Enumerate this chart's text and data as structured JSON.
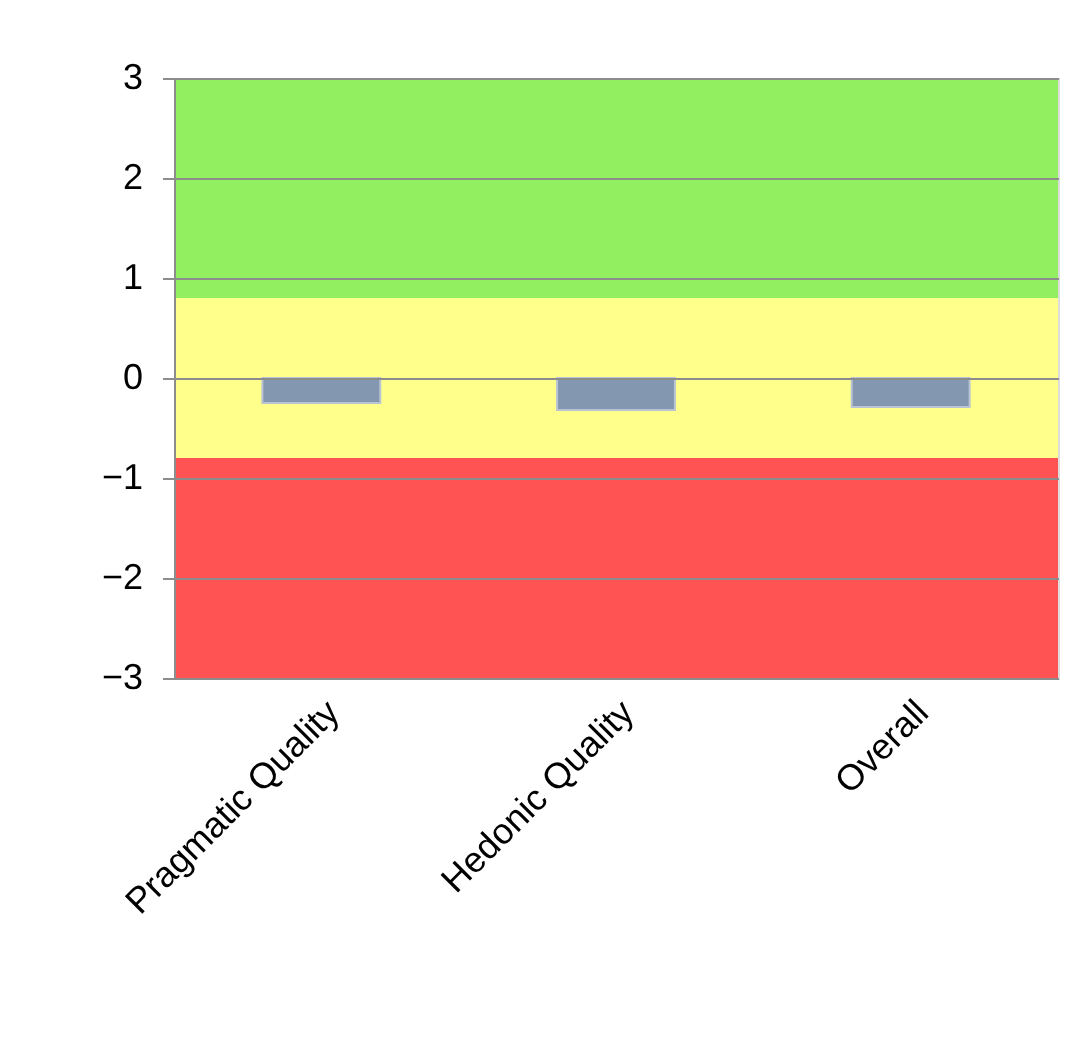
{
  "chart_data": {
    "type": "bar",
    "categories": [
      "Pragmatic Quality",
      "Hedonic Quality",
      "Overall"
    ],
    "series": [
      {
        "color": "#8497b0",
        "values": [
          -0.25,
          -0.32,
          -0.29
        ]
      }
    ],
    "ylim": [
      -3,
      3
    ],
    "yticks": [
      -3,
      -2,
      -1,
      0,
      1,
      2,
      3
    ],
    "grid": "y",
    "bands": [
      {
        "axis": "y",
        "from": 0.8,
        "to": 3,
        "color": "#92f060"
      },
      {
        "axis": "y",
        "from": -0.8,
        "to": 0.8,
        "color": "#ffff8c"
      },
      {
        "axis": "y",
        "from": -3,
        "to": -0.8,
        "color": "#ff5353"
      }
    ]
  }
}
